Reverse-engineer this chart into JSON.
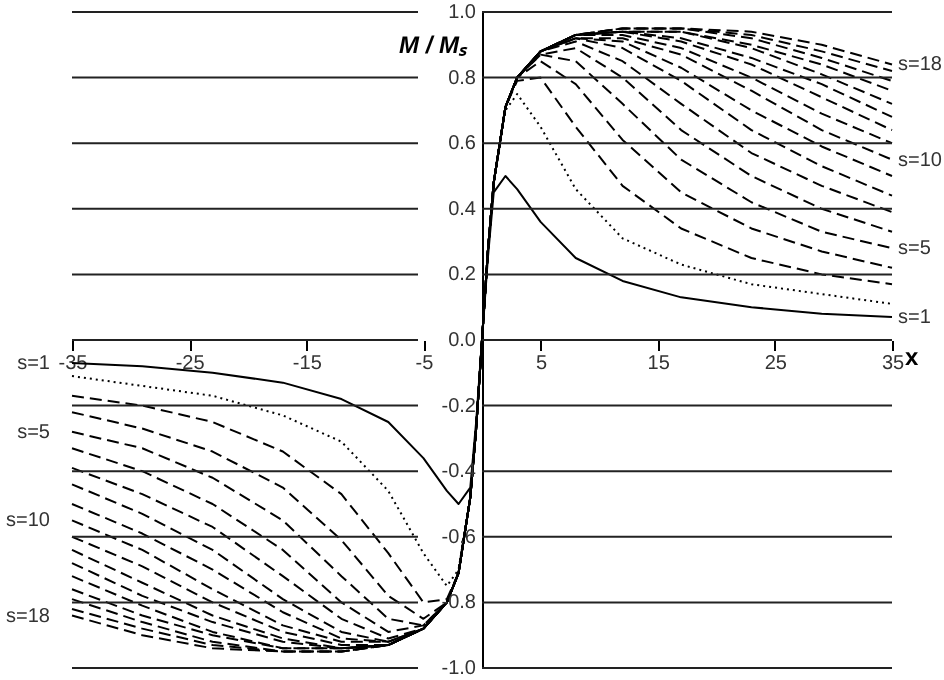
{
  "chart_data": {
    "type": "line",
    "xlabel": "x",
    "ylabel": "M / Mₛ",
    "x": [
      -35,
      -29,
      -23,
      -17,
      -12,
      -8,
      -5,
      -3,
      -2,
      -1,
      -0.5,
      0,
      0.5,
      1,
      2,
      3,
      5,
      8,
      12,
      17,
      23,
      29,
      35
    ],
    "xlim": [
      -35,
      35
    ],
    "xticks": [
      -35,
      -25,
      -15,
      -5,
      5,
      15,
      25,
      35
    ],
    "ylim": [
      -1,
      1
    ],
    "yticks": [
      {
        "value": -1,
        "label": "-1.0"
      },
      {
        "value": -0.8,
        "label": "-0.8"
      },
      {
        "value": -0.6,
        "label": "-0.6"
      },
      {
        "value": -0.4,
        "label": "-0.4"
      },
      {
        "value": -0.2,
        "label": "-0.2"
      },
      {
        "value": 0,
        "label": "0.0"
      },
      {
        "value": 0.2,
        "label": "0.2"
      },
      {
        "value": 0.4,
        "label": "0.4"
      },
      {
        "value": 0.6,
        "label": "0.6"
      },
      {
        "value": 0.8,
        "label": "0.8"
      },
      {
        "value": 1,
        "label": "1.0"
      }
    ],
    "grid": "y",
    "series": [
      {
        "name": "s=1",
        "color": "#000000",
        "line_style": "solid",
        "values": [
          -0.07,
          -0.08,
          -0.1,
          -0.13,
          -0.18,
          -0.25,
          -0.36,
          -0.46,
          -0.5,
          -0.45,
          -0.25,
          0,
          0.25,
          0.45,
          0.5,
          0.46,
          0.36,
          0.25,
          0.18,
          0.13,
          0.1,
          0.08,
          0.07
        ]
      },
      {
        "color": "#000000",
        "line_style": "dotted",
        "values": [
          -0.11,
          -0.14,
          -0.17,
          -0.23,
          -0.31,
          -0.46,
          -0.65,
          -0.75,
          -0.7,
          -0.48,
          -0.27,
          0,
          0.27,
          0.48,
          0.7,
          0.75,
          0.65,
          0.46,
          0.31,
          0.23,
          0.17,
          0.14,
          0.11
        ]
      },
      {
        "color": "#000000",
        "line_style": "dashed",
        "values": [
          -0.17,
          -0.2,
          -0.25,
          -0.34,
          -0.47,
          -0.65,
          -0.8,
          -0.79,
          -0.71,
          -0.48,
          -0.27,
          0,
          0.27,
          0.48,
          0.71,
          0.79,
          0.8,
          0.65,
          0.47,
          0.34,
          0.25,
          0.2,
          0.17
        ]
      },
      {
        "color": "#000000",
        "line_style": "dashed",
        "values": [
          -0.22,
          -0.27,
          -0.34,
          -0.45,
          -0.61,
          -0.78,
          -0.85,
          -0.8,
          -0.71,
          -0.48,
          -0.27,
          0,
          0.27,
          0.48,
          0.71,
          0.8,
          0.85,
          0.78,
          0.61,
          0.45,
          0.34,
          0.27,
          0.22
        ]
      },
      {
        "name": "s=5",
        "color": "#000000",
        "line_style": "dashed",
        "values": [
          -0.28,
          -0.33,
          -0.42,
          -0.55,
          -0.72,
          -0.85,
          -0.87,
          -0.8,
          -0.71,
          -0.48,
          -0.27,
          0,
          0.27,
          0.48,
          0.71,
          0.8,
          0.87,
          0.85,
          0.72,
          0.55,
          0.42,
          0.33,
          0.28
        ]
      },
      {
        "color": "#000000",
        "line_style": "dashed",
        "values": [
          -0.33,
          -0.4,
          -0.5,
          -0.64,
          -0.8,
          -0.89,
          -0.87,
          -0.8,
          -0.71,
          -0.48,
          -0.27,
          0,
          0.27,
          0.48,
          0.71,
          0.8,
          0.87,
          0.89,
          0.8,
          0.64,
          0.5,
          0.4,
          0.33
        ]
      },
      {
        "color": "#000000",
        "line_style": "dashed",
        "values": [
          -0.39,
          -0.47,
          -0.57,
          -0.72,
          -0.85,
          -0.91,
          -0.88,
          -0.8,
          -0.71,
          -0.48,
          -0.27,
          0,
          0.27,
          0.48,
          0.71,
          0.8,
          0.88,
          0.91,
          0.85,
          0.72,
          0.57,
          0.47,
          0.39
        ]
      },
      {
        "color": "#000000",
        "line_style": "dashed",
        "values": [
          -0.44,
          -0.53,
          -0.64,
          -0.79,
          -0.89,
          -0.92,
          -0.88,
          -0.8,
          -0.71,
          -0.48,
          -0.27,
          0,
          0.27,
          0.48,
          0.71,
          0.8,
          0.88,
          0.92,
          0.89,
          0.79,
          0.64,
          0.53,
          0.44
        ]
      },
      {
        "color": "#000000",
        "line_style": "dashed",
        "values": [
          -0.5,
          -0.59,
          -0.7,
          -0.83,
          -0.91,
          -0.92,
          -0.88,
          -0.8,
          -0.71,
          -0.48,
          -0.27,
          0,
          0.27,
          0.48,
          0.71,
          0.8,
          0.88,
          0.92,
          0.91,
          0.83,
          0.7,
          0.59,
          0.5
        ]
      },
      {
        "name": "s=10",
        "color": "#000000",
        "line_style": "dashed",
        "values": [
          -0.55,
          -0.64,
          -0.76,
          -0.87,
          -0.92,
          -0.92,
          -0.88,
          -0.8,
          -0.71,
          -0.48,
          -0.27,
          0,
          0.27,
          0.48,
          0.71,
          0.8,
          0.88,
          0.92,
          0.92,
          0.87,
          0.76,
          0.64,
          0.55
        ]
      },
      {
        "color": "#000000",
        "line_style": "dashed",
        "values": [
          -0.6,
          -0.69,
          -0.8,
          -0.89,
          -0.93,
          -0.93,
          -0.88,
          -0.8,
          -0.71,
          -0.48,
          -0.27,
          0,
          0.27,
          0.48,
          0.71,
          0.8,
          0.88,
          0.93,
          0.93,
          0.89,
          0.8,
          0.69,
          0.6
        ]
      },
      {
        "color": "#000000",
        "line_style": "dashed",
        "values": [
          -0.64,
          -0.74,
          -0.84,
          -0.91,
          -0.94,
          -0.93,
          -0.88,
          -0.8,
          -0.71,
          -0.48,
          -0.27,
          0,
          0.27,
          0.48,
          0.71,
          0.8,
          0.88,
          0.93,
          0.94,
          0.91,
          0.84,
          0.74,
          0.64
        ]
      },
      {
        "color": "#000000",
        "line_style": "dashed",
        "values": [
          -0.68,
          -0.78,
          -0.86,
          -0.92,
          -0.94,
          -0.93,
          -0.88,
          -0.8,
          -0.71,
          -0.48,
          -0.27,
          0,
          0.27,
          0.48,
          0.71,
          0.8,
          0.88,
          0.93,
          0.94,
          0.92,
          0.86,
          0.78,
          0.68
        ]
      },
      {
        "color": "#000000",
        "line_style": "dashed",
        "values": [
          -0.72,
          -0.81,
          -0.89,
          -0.94,
          -0.94,
          -0.93,
          -0.88,
          -0.8,
          -0.71,
          -0.48,
          -0.27,
          0,
          0.27,
          0.48,
          0.71,
          0.8,
          0.88,
          0.93,
          0.94,
          0.94,
          0.89,
          0.81,
          0.72
        ]
      },
      {
        "color": "#000000",
        "line_style": "dashed",
        "values": [
          -0.76,
          -0.84,
          -0.9,
          -0.94,
          -0.94,
          -0.93,
          -0.88,
          -0.8,
          -0.71,
          -0.48,
          -0.27,
          0,
          0.27,
          0.48,
          0.71,
          0.8,
          0.88,
          0.93,
          0.94,
          0.94,
          0.9,
          0.84,
          0.76
        ]
      },
      {
        "color": "#000000",
        "line_style": "dashed",
        "values": [
          -0.79,
          -0.86,
          -0.92,
          -0.95,
          -0.95,
          -0.93,
          -0.88,
          -0.8,
          -0.71,
          -0.48,
          -0.27,
          0,
          0.27,
          0.48,
          0.71,
          0.8,
          0.88,
          0.93,
          0.95,
          0.95,
          0.92,
          0.86,
          0.79
        ]
      },
      {
        "color": "#000000",
        "line_style": "dashed",
        "values": [
          -0.82,
          -0.88,
          -0.93,
          -0.95,
          -0.95,
          -0.93,
          -0.88,
          -0.8,
          -0.71,
          -0.48,
          -0.27,
          0,
          0.27,
          0.48,
          0.71,
          0.8,
          0.88,
          0.93,
          0.95,
          0.95,
          0.93,
          0.88,
          0.82
        ]
      },
      {
        "name": "s=18",
        "color": "#000000",
        "line_style": "dashed",
        "values": [
          -0.84,
          -0.9,
          -0.94,
          -0.95,
          -0.95,
          -0.93,
          -0.88,
          -0.8,
          -0.71,
          -0.48,
          -0.27,
          0,
          0.27,
          0.48,
          0.71,
          0.8,
          0.88,
          0.93,
          0.95,
          0.95,
          0.94,
          0.9,
          0.84
        ]
      }
    ]
  }
}
